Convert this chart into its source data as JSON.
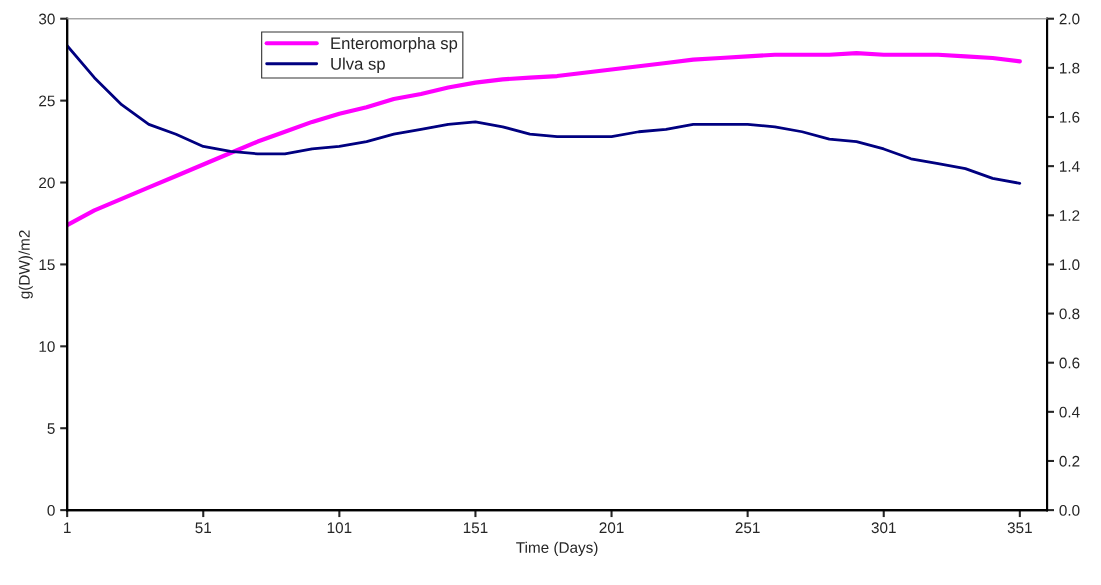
{
  "chart_data": {
    "type": "line",
    "xlabel": "Time (Days)",
    "ylabel": "g(DW)/m2",
    "x": [
      1,
      11,
      21,
      31,
      41,
      51,
      61,
      71,
      81,
      91,
      101,
      111,
      121,
      131,
      141,
      151,
      161,
      171,
      181,
      191,
      201,
      211,
      221,
      231,
      241,
      251,
      261,
      271,
      281,
      291,
      301,
      311,
      321,
      331,
      341,
      351
    ],
    "series": [
      {
        "name": "Enteromorpha sp",
        "color": "#ff00ff",
        "values": [
          17.4,
          18.3,
          19.0,
          19.7,
          20.4,
          21.1,
          21.8,
          22.5,
          23.1,
          23.7,
          24.2,
          24.6,
          25.1,
          25.4,
          25.8,
          26.1,
          26.3,
          26.4,
          26.5,
          26.7,
          26.9,
          27.1,
          27.3,
          27.5,
          27.6,
          27.7,
          27.8,
          27.8,
          27.8,
          27.9,
          27.8,
          27.8,
          27.8,
          27.7,
          27.6,
          27.4
        ]
      },
      {
        "name": "Ulva sp",
        "color": "#000080",
        "axis": "y2",
        "values": [
          1.89,
          1.76,
          1.65,
          1.57,
          1.53,
          1.48,
          1.46,
          1.45,
          1.45,
          1.47,
          1.48,
          1.5,
          1.53,
          1.55,
          1.57,
          1.58,
          1.56,
          1.53,
          1.52,
          1.52,
          1.52,
          1.54,
          1.55,
          1.57,
          1.57,
          1.57,
          1.56,
          1.54,
          1.51,
          1.5,
          1.47,
          1.43,
          1.41,
          1.39,
          1.35,
          1.33
        ]
      }
    ],
    "xlim": [
      1,
      361
    ],
    "xticks": [
      1,
      51,
      101,
      151,
      201,
      251,
      301,
      351
    ],
    "ylim": [
      0,
      30
    ],
    "yticks": [
      0,
      5,
      10,
      15,
      20,
      25,
      30
    ],
    "y2lim": [
      0,
      2.0
    ],
    "y2ticks": [
      {
        "value": 0,
        "label": "0.0"
      },
      {
        "value": 0.2,
        "label": "0.2"
      },
      {
        "value": 0.4,
        "label": "0.4"
      },
      {
        "value": 0.6,
        "label": "0.6"
      },
      {
        "value": 0.8,
        "label": "0.8"
      },
      {
        "value": 1.0,
        "label": "1.0"
      },
      {
        "value": 1.2,
        "label": "1.2"
      },
      {
        "value": 1.4,
        "label": "1.4"
      },
      {
        "value": 1.6,
        "label": "1.6"
      },
      {
        "value": 1.8,
        "label": "1.8"
      },
      {
        "value": 2.0,
        "label": "2.0"
      }
    ],
    "grid": false,
    "legend": "top left",
    "marker": "none",
    "line_style": "solid"
  }
}
